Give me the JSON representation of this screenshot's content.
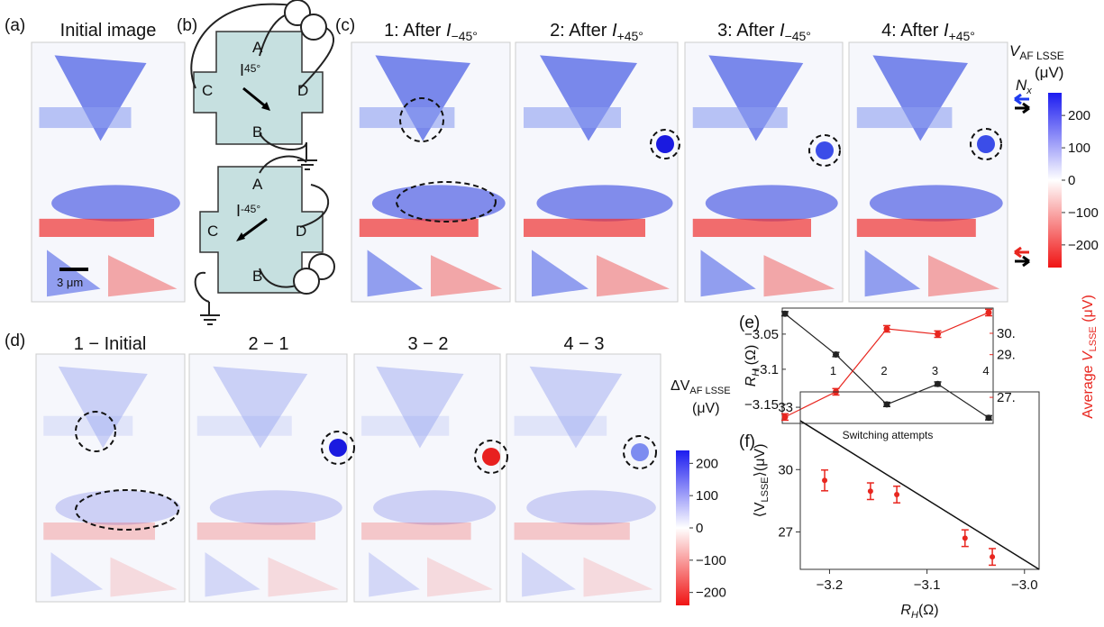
{
  "panels": {
    "a": {
      "label": "(a)",
      "title": "Initial image",
      "scale_bar": "3 μm"
    },
    "b": {
      "label": "(b)",
      "top": {
        "A": "A",
        "B": "B",
        "C": "C",
        "D": "D",
        "current": "I",
        "current_sub": "45°"
      },
      "bottom": {
        "A": "A",
        "B": "B",
        "C": "C",
        "D": "D",
        "current": "I",
        "current_sub": "-45°"
      }
    },
    "c": {
      "label": "(c)",
      "titles": [
        {
          "prefix": "1: After ",
          "symbol": "I",
          "sub": "−45°"
        },
        {
          "prefix": "2: After ",
          "symbol": "I",
          "sub": "+45°"
        },
        {
          "prefix": "3: After ",
          "symbol": "I",
          "sub": "−45°"
        },
        {
          "prefix": "4: After ",
          "symbol": "I",
          "sub": "+45°"
        }
      ],
      "colorbar": {
        "symbol": "V",
        "sub": "AF LSSE",
        "unit": "(μV)",
        "nx": "N",
        "nx_sub": "x",
        "lim": [
          -270,
          270
        ],
        "ticks": [
          200,
          100,
          0,
          {
            "value": -100,
            "label": "−100"
          },
          {
            "value": -200,
            "label": "−200"
          }
        ]
      }
    },
    "d": {
      "label": "(d)",
      "titles": [
        "1 − Initial",
        "2 − 1",
        "3 − 2",
        "4 − 3"
      ],
      "colorbar": {
        "symbol": "ΔV",
        "sub": "AF LSSE",
        "unit": "(μV)",
        "lim": [
          -240,
          240
        ],
        "ticks": [
          200,
          100,
          0,
          {
            "value": -100,
            "label": "−100"
          },
          {
            "value": -200,
            "label": "−200"
          }
        ]
      }
    },
    "e": {
      "label": "(e)"
    },
    "f": {
      "label": "(f)"
    }
  },
  "chart_data": [
    {
      "type": "line",
      "xlabel": "Switching attempts",
      "ylabel": "R",
      "ylabel_sub": "H",
      "ylabel_unit": " (Ω)",
      "y2label": "Average ",
      "y2label_symbol": "V",
      "y2label_sub": "LSSE",
      "y2label_unit": " (μV)",
      "categories": [
        null,
        "1",
        "2",
        "3",
        "4"
      ],
      "ylim": [
        -3.177,
        -3.013
      ],
      "yticks": [
        {
          "value": -3.05,
          "label": "−3.05"
        },
        {
          "value": -3.1,
          "label": "−3.1"
        },
        {
          "value": -3.15,
          "label": "−3.15"
        }
      ],
      "y2lim": [
        25.78,
        31.18
      ],
      "y2ticks": [
        {
          "value": 30,
          "label": "30."
        },
        {
          "value": 29,
          "label": "29."
        },
        {
          "value": 27,
          "label": "27."
        }
      ],
      "series": [
        {
          "name": "R_H",
          "color": "#222222",
          "values": [
            -3.021,
            -3.079,
            -3.15,
            -3.121,
            -3.169
          ],
          "errors": [
            0.003,
            0.003,
            0.003,
            0.003,
            0.003
          ]
        },
        {
          "name": "Average V_LSSE",
          "color": "#e8261f",
          "axis": "y2",
          "values": [
            26.08,
            27.26,
            30.21,
            29.96,
            30.97
          ],
          "errors": [
            0.15,
            0.15,
            0.15,
            0.15,
            0.15
          ]
        }
      ]
    },
    {
      "type": "scatter",
      "xlabel": "R",
      "xlabel_sub": "H",
      "xlabel_unit": "(Ω)",
      "ylabel": "⟨V",
      "ylabel_sub": "LSSE",
      "ylabel_unit": "⟩(μV)",
      "x": [
        -3.205,
        -3.158,
        -3.131,
        -3.061,
        -3.033
      ],
      "values": [
        29.48,
        28.96,
        28.8,
        26.7,
        25.8
      ],
      "errors": [
        0.5,
        0.4,
        0.4,
        0.4,
        0.4
      ],
      "color": "#e8261f",
      "fit": {
        "x": [
          -3.23,
          -2.985
        ],
        "y": [
          32.35,
          25.2
        ],
        "color": "#111111"
      },
      "xlim": [
        -3.23,
        -2.985
      ],
      "xticks": [
        {
          "value": -3.2,
          "label": "−3.2"
        },
        {
          "value": -3.1,
          "label": "−3.1"
        },
        {
          "value": -3.0,
          "label": "−3.0"
        }
      ],
      "ylim": [
        25.2,
        33.74
      ],
      "yticks": [
        27,
        30,
        33
      ]
    }
  ]
}
